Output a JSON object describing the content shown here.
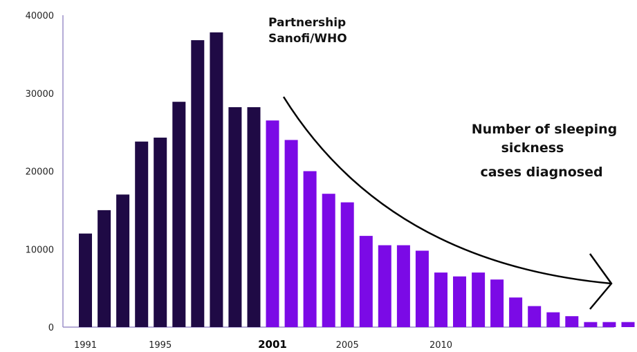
{
  "chart_data": {
    "type": "bar",
    "categories": [
      "1991",
      "1992",
      "1993",
      "1994",
      "1995",
      "1996",
      "1997",
      "1998",
      "1999",
      "2000",
      "2001",
      "2002",
      "2003",
      "2004",
      "2005",
      "2006",
      "2007",
      "2008",
      "2009",
      "2010",
      "2011",
      "2012",
      "2013",
      "2014",
      "2015",
      "2016",
      "2017",
      "2018",
      "2019",
      "2020"
    ],
    "values": [
      12000,
      15000,
      17000,
      23800,
      24300,
      28900,
      36800,
      37800,
      28200,
      28200,
      26500,
      24000,
      20000,
      17100,
      16000,
      11700,
      10500,
      10500,
      9800,
      7000,
      6500,
      7000,
      6100,
      3800,
      2700,
      1900,
      1400,
      650,
      650,
      650
    ],
    "ylim": [
      0,
      40000
    ],
    "yticks": [
      "0",
      "10000",
      "20000",
      "30000",
      "40000"
    ],
    "xticks": [
      {
        "index": 0,
        "label": "1991",
        "bold": false
      },
      {
        "index": 4,
        "label": "1995",
        "bold": false
      },
      {
        "index": 10,
        "label": "2001",
        "bold": true
      },
      {
        "index": 14,
        "label": "2005",
        "bold": false
      },
      {
        "index": 19,
        "label": "2010",
        "bold": false
      }
    ],
    "split_index": 10,
    "colors": {
      "before": "#1f0a45",
      "after": "#7b0ae6",
      "axis": "#9b8fc9"
    },
    "grid": false,
    "annotations": {
      "partnership": [
        "Partnership",
        "Sanofi/WHO"
      ],
      "cases": [
        "Number of sleeping",
        "sickness",
        "cases diagnosed"
      ]
    }
  }
}
